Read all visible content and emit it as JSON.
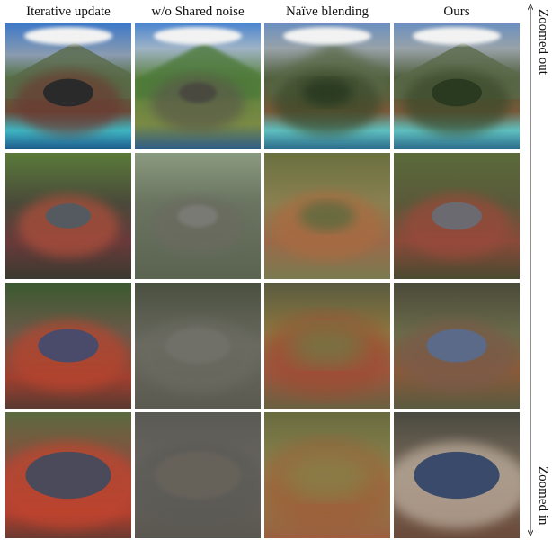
{
  "columns": [
    "Iterative update",
    "w/o Shared noise",
    "Naïve blending",
    "Ours"
  ],
  "axis": {
    "top": "Zoomed out",
    "bottom": "Zoomed in"
  }
}
